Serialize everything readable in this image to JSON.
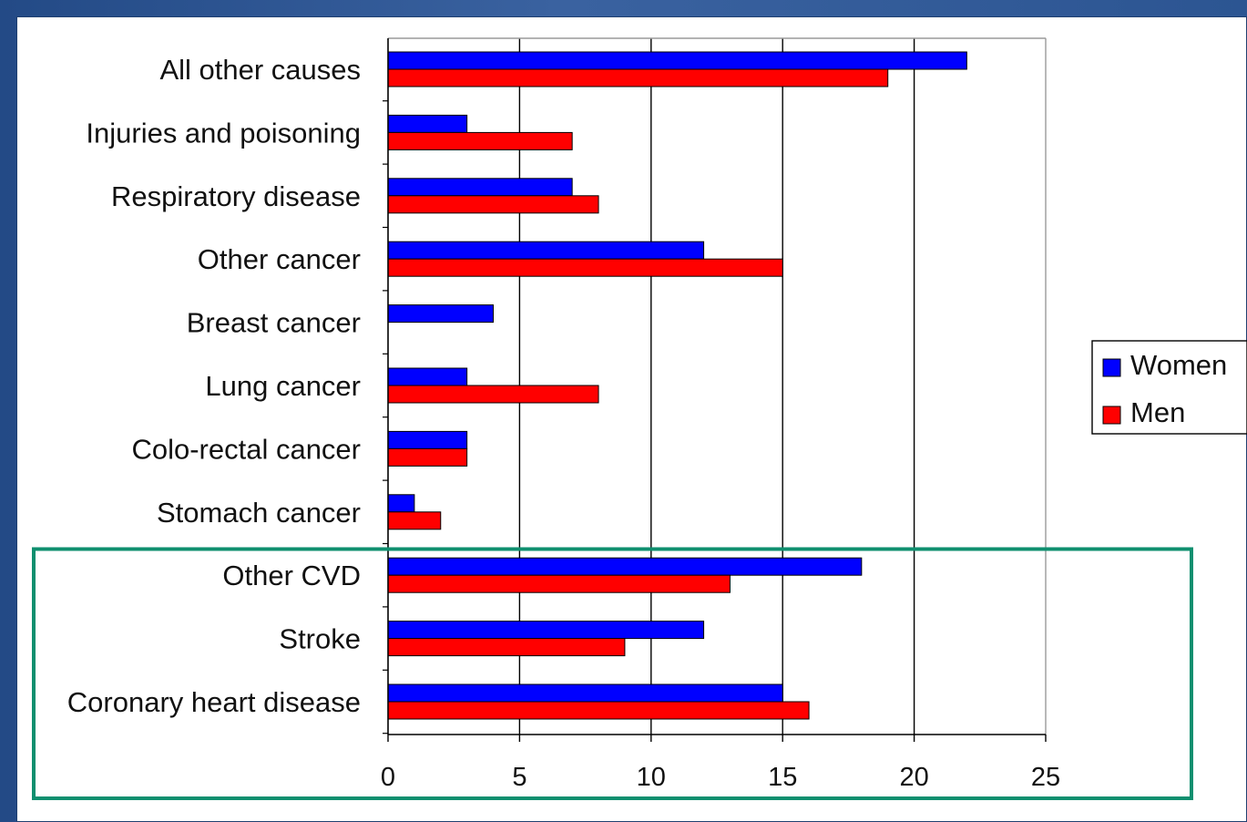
{
  "chart_data": {
    "type": "bar",
    "orientation": "horizontal",
    "categories": [
      "All other causes",
      "Injuries and poisoning",
      "Respiratory disease",
      "Other cancer",
      "Breast cancer",
      "Lung cancer",
      "Colo-rectal cancer",
      "Stomach cancer",
      "Other CVD",
      "Stroke",
      "Coronary heart disease"
    ],
    "series": [
      {
        "name": "Women",
        "color": "#0000ff",
        "values": [
          22,
          3,
          7,
          12,
          4,
          3,
          3,
          1,
          18,
          12,
          15
        ]
      },
      {
        "name": "Men",
        "color": "#ff0000",
        "values": [
          19,
          7,
          8,
          15,
          0,
          8,
          3,
          2,
          13,
          9,
          16
        ]
      }
    ],
    "xlim": [
      0,
      25
    ],
    "xticks": [
      "0",
      "5",
      "10",
      "15",
      "20",
      "25"
    ],
    "grid": "vertical",
    "legend": "right",
    "title": "",
    "xlabel": "",
    "ylabel": "",
    "highlight": {
      "categories": [
        "Other CVD",
        "Stroke",
        "Coronary heart disease"
      ],
      "color": "#0f8f6f"
    }
  }
}
